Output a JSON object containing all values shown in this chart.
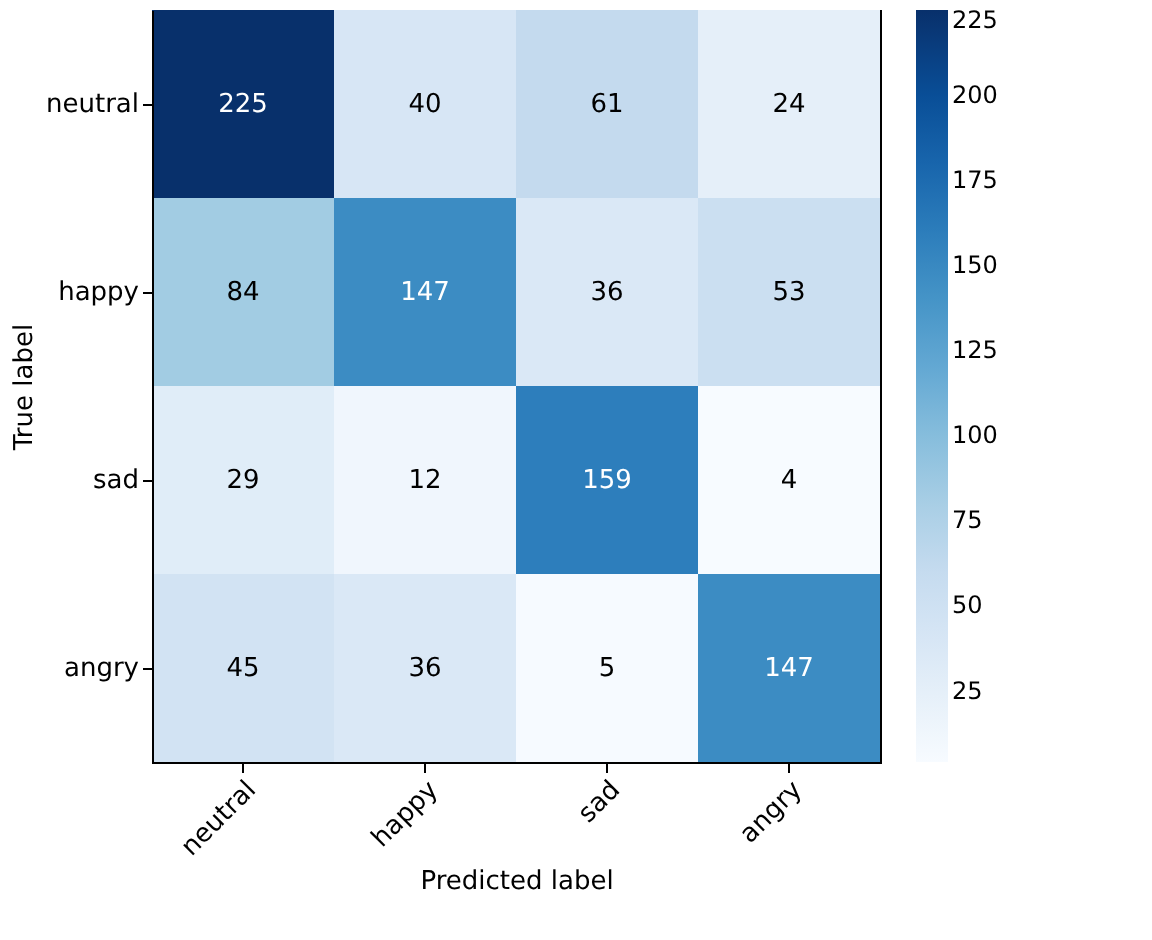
{
  "chart_data": {
    "type": "heatmap",
    "categories": [
      "neutral",
      "happy",
      "sad",
      "angry"
    ],
    "y_categories": [
      "neutral",
      "happy",
      "sad",
      "angry"
    ],
    "cells": [
      [
        225,
        40,
        61,
        24
      ],
      [
        84,
        147,
        36,
        53
      ],
      [
        29,
        12,
        159,
        4
      ],
      [
        45,
        36,
        5,
        147
      ]
    ],
    "clim": [
      4,
      225
    ],
    "cticks": [
      25,
      50,
      75,
      100,
      125,
      150,
      175,
      200,
      225
    ],
    "xlabel": "Predicted label",
    "ylabel": "True label",
    "data_labels": true,
    "grid": false
  }
}
